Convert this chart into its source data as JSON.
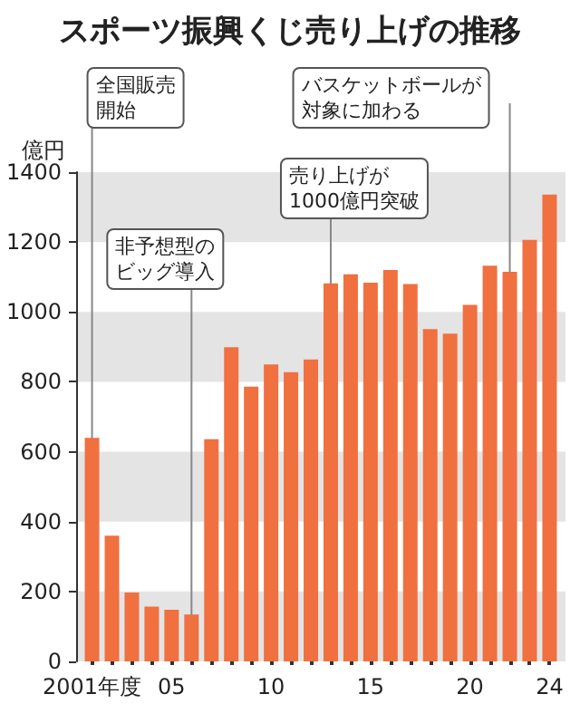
{
  "chart_data": {
    "type": "bar",
    "title": "スポーツ振興くじ売り上げの推移",
    "ylabel": "億円",
    "x": [
      2001,
      2002,
      2003,
      2004,
      2005,
      2006,
      2007,
      2008,
      2009,
      2010,
      2011,
      2012,
      2013,
      2014,
      2015,
      2016,
      2017,
      2018,
      2019,
      2020,
      2021,
      2022,
      2023,
      2024
    ],
    "values": [
      640,
      360,
      197,
      157,
      148,
      134,
      636,
      899,
      786,
      850,
      828,
      864,
      1082,
      1108,
      1084,
      1120,
      1080,
      951,
      938,
      1020,
      1132,
      1115,
      1206,
      1336
    ],
    "color": "#f07040",
    "xlim": [
      2000.2,
      2024.8
    ],
    "xticks": [
      {
        "value": 2001,
        "label": "2001年度"
      },
      {
        "value": 2002,
        "label": null
      },
      {
        "value": 2003,
        "label": null
      },
      {
        "value": 2004,
        "label": null
      },
      {
        "value": 2005,
        "label": "05"
      },
      {
        "value": 2006,
        "label": null
      },
      {
        "value": 2007,
        "label": null
      },
      {
        "value": 2008,
        "label": null
      },
      {
        "value": 2009,
        "label": null
      },
      {
        "value": 2010,
        "label": "10"
      },
      {
        "value": 2011,
        "label": null
      },
      {
        "value": 2012,
        "label": null
      },
      {
        "value": 2013,
        "label": null
      },
      {
        "value": 2014,
        "label": null
      },
      {
        "value": 2015,
        "label": "15"
      },
      {
        "value": 2016,
        "label": null
      },
      {
        "value": 2017,
        "label": null
      },
      {
        "value": 2018,
        "label": null
      },
      {
        "value": 2019,
        "label": null
      },
      {
        "value": 2020,
        "label": "20"
      },
      {
        "value": 2021,
        "label": null
      },
      {
        "value": 2022,
        "label": null
      },
      {
        "value": 2023,
        "label": null
      },
      {
        "value": 2024,
        "label": "24"
      }
    ],
    "ylim": [
      0,
      1400
    ],
    "yticks": [
      0,
      200,
      400,
      600,
      800,
      1000,
      1200,
      1400
    ],
    "bands": [
      {
        "axis": "y",
        "from": 0,
        "to": 200,
        "color": "#e4e4e4"
      },
      {
        "axis": "y",
        "from": 400,
        "to": 600,
        "color": "#e4e4e4"
      },
      {
        "axis": "y",
        "from": 800,
        "to": 1000,
        "color": "#e4e4e4"
      },
      {
        "axis": "y",
        "from": 1200,
        "to": 1400,
        "color": "#e4e4e4"
      }
    ],
    "ref_lines": [
      {
        "axis": "x",
        "value": 2001,
        "label": "全国販売開始"
      },
      {
        "axis": "x",
        "value": 2006,
        "label": "非予想型のビッグ導入"
      },
      {
        "axis": "x",
        "value": 2013,
        "label": "売り上げが1000億円突破"
      },
      {
        "axis": "x",
        "value": 2022,
        "label": "バスケットボールが対象に加わる"
      }
    ]
  }
}
